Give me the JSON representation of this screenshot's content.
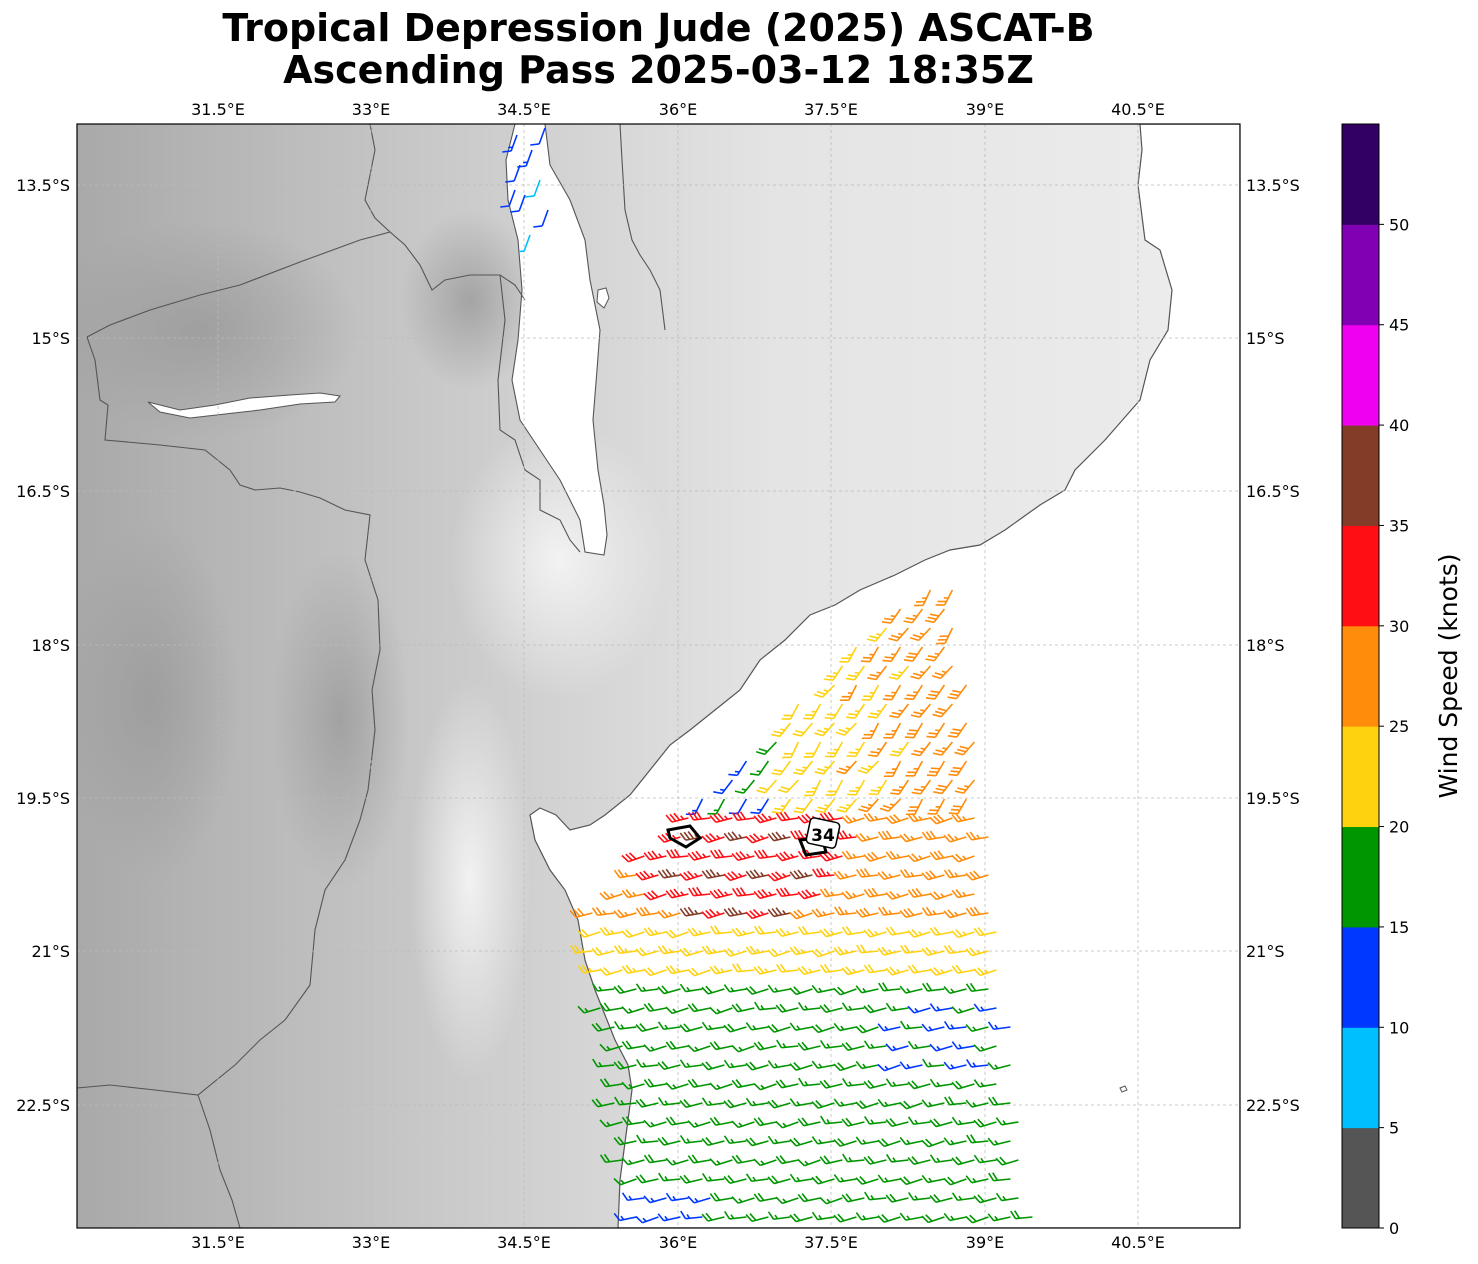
{
  "title_line1": "Tropical Depression Jude (2025) ASCAT-B",
  "title_line2": "Ascending Pass 2025-03-12 18:35Z",
  "lon_ticks": [
    "31.5°E",
    "33°E",
    "34.5°E",
    "36°E",
    "37.5°E",
    "39°E",
    "40.5°E"
  ],
  "lat_ticks": [
    "13.5°S",
    "15°S",
    "16.5°S",
    "18°S",
    "19.5°S",
    "21°S",
    "22.5°S"
  ],
  "contour_label": "34",
  "colorbar": {
    "label": "Wind Speed (knots)",
    "tick_labels": [
      "0",
      "5",
      "10",
      "15",
      "20",
      "25",
      "30",
      "35",
      "40",
      "45",
      "50"
    ],
    "bins": [
      {
        "min": 0,
        "max": 5,
        "color": "#555555"
      },
      {
        "min": 5,
        "max": 10,
        "color": "#00bfff"
      },
      {
        "min": 10,
        "max": 15,
        "color": "#0038ff"
      },
      {
        "min": 15,
        "max": 20,
        "color": "#009600"
      },
      {
        "min": 20,
        "max": 25,
        "color": "#ffd20f"
      },
      {
        "min": 25,
        "max": 30,
        "color": "#ff8c0a"
      },
      {
        "min": 30,
        "max": 35,
        "color": "#ff0f14"
      },
      {
        "min": 35,
        "max": 40,
        "color": "#823c28"
      },
      {
        "min": 40,
        "max": 45,
        "color": "#f000f0"
      },
      {
        "min": 45,
        "max": 50,
        "color": "#8200b4"
      },
      {
        "min": 50,
        "max": 55,
        "color": "#320064"
      }
    ]
  },
  "colors": {
    "gridline": "#bbbbbb",
    "coastline": "#555555",
    "ocean": "#ffffff"
  }
}
